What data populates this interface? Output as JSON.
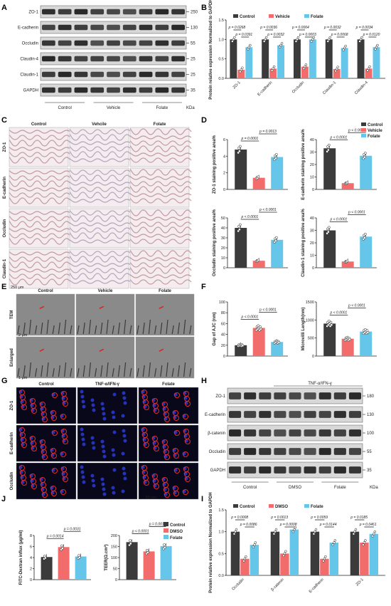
{
  "colors": {
    "control": "#3b3b3b",
    "vehicle": "#f26c6c",
    "folate": "#66c6ea"
  },
  "panels": {
    "A": "A",
    "B": "B",
    "C": "C",
    "D": "D",
    "E": "E",
    "F": "F",
    "G": "G",
    "H": "H",
    "I": "I",
    "J": "J"
  },
  "panelA": {
    "rows": [
      "ZO-1",
      "E-cadherin",
      "Occludin",
      "Claudin-4",
      "Claudin-1",
      "GAPDH"
    ],
    "markers": [
      "250",
      "130",
      "55",
      "25",
      "25",
      "35"
    ],
    "groups": [
      "Control",
      "Vehicle",
      "Folate"
    ],
    "unit": "KDa"
  },
  "panelB": {
    "ylabel": "Protein relative expression Normalized to GAPDH",
    "legend": [
      "Control",
      "Vehicle",
      "Folate"
    ],
    "categories": [
      "ZO-1",
      "E-cadherin",
      "Occludin",
      "Claudin-1",
      "Claudin-4"
    ],
    "yticks": [
      "0.0",
      "0.5",
      "1.0",
      "1.5"
    ],
    "pvals": [
      [
        "p = 0.0268",
        "p = 0.0391"
      ],
      [
        "p = 0.0036",
        "p = 0.0032"
      ],
      [
        "p = 0.0004",
        "p = 0.0003"
      ],
      [
        "p = 0.0032",
        "p = 0.0068"
      ],
      [
        "p = 0.0034",
        "p = 0.0120"
      ]
    ]
  },
  "panelC": {
    "cols": [
      "Control",
      "Vehcile",
      "Folate"
    ],
    "rows": [
      "ZO-1",
      "E-cadherin",
      "Occludin",
      "Claudin-1"
    ],
    "scale": "250 μm"
  },
  "panelD": {
    "legend": [
      "Control",
      "Vehicle",
      "Folate"
    ],
    "charts": [
      {
        "ylabel": "ZO-1 staining positive area%",
        "yticks": [
          "0",
          "2",
          "4",
          "6"
        ],
        "p1": "p = 0.0001",
        "p2": "p = 0.0013"
      },
      {
        "ylabel": "E-cadherin staining positive area%",
        "yticks": [
          "0",
          "10",
          "20",
          "30",
          "40"
        ],
        "p1": "p < 0.0001",
        "p2": "p < 0.0001"
      },
      {
        "ylabel": "Occludin staining positive area%",
        "yticks": [
          "0",
          "10",
          "20",
          "30",
          "40",
          "50"
        ],
        "p1": "p < 0.0001",
        "p2": "p < 0.0001"
      },
      {
        "ylabel": "Claudin-1 staining positive area%",
        "yticks": [
          "0",
          "10",
          "20",
          "30",
          "40"
        ],
        "p1": "p < 0.0001",
        "p2": "p < 0.0001"
      }
    ]
  },
  "panelE": {
    "cols": [
      "Control",
      "Vehicle",
      "Folate"
    ],
    "rows": [
      "TEM",
      "Enlarged"
    ],
    "scale1": "2 μm",
    "scale2": "1 μm"
  },
  "panelF": {
    "charts": [
      {
        "ylabel": "Gap of AJC (nm)",
        "yticks": [
          "0",
          "20",
          "40",
          "60",
          "80",
          "100"
        ],
        "p1": "p < 0.0001",
        "p2": "p < 0.0001"
      },
      {
        "ylabel": "Microvilli Length(nm)",
        "yticks": [
          "0",
          "500",
          "1000",
          "1500"
        ],
        "p1": "p < 0.0001",
        "p2": "p < 0.0001"
      }
    ]
  },
  "panelG": {
    "cols": [
      "Control",
      "TNF-α/IFN-γ",
      "Folate"
    ],
    "rows": [
      "ZO-1",
      "E-cadherin",
      "Occludin"
    ],
    "scale": "50 μm"
  },
  "panelH": {
    "treatment": "TNF-α/IFN-γ",
    "rows": [
      "ZO-1",
      "E-cadherin",
      "β-catenin",
      "Occludin",
      "GAPDH"
    ],
    "markers": [
      "180",
      "130",
      "100",
      "55",
      "35"
    ],
    "groups": [
      "Control",
      "DMSO",
      "Folate"
    ],
    "unit": "KDa"
  },
  "panelI": {
    "ylabel": "Protein relative expression Normalized to GAPDH",
    "legend": [
      "Control",
      "DMSO",
      "Folate"
    ],
    "categories": [
      "Occludin",
      "β-catenin",
      "E-cadherin",
      "ZO-1"
    ],
    "yticks": [
      "0.0",
      "0.5",
      "1.0",
      "1.5"
    ],
    "pvals": [
      [
        "p = 0.0008",
        "p = 0.0086"
      ],
      [
        "p = 0.0013",
        "p = 0.0008"
      ],
      [
        "p = 0.0059",
        "p = 0.0144"
      ],
      [
        "p = 0.0185",
        "p = 0.0461"
      ]
    ]
  },
  "panelJ": {
    "legend": [
      "Control",
      "DMSO",
      "Folate"
    ],
    "charts": [
      {
        "ylabel": "FITC-Dextran influx (μg/ml)",
        "yticks": [
          "0",
          "2",
          "4",
          "6",
          "8"
        ],
        "p1": "p = 0.0014",
        "p2": "p = 0.0031"
      },
      {
        "ylabel": "TEER(Ω.cm²)",
        "yticks": [
          "0",
          "50",
          "100",
          "150",
          "200"
        ],
        "p1": "p < 0.0001",
        "p2": "p = 0.0010"
      }
    ]
  },
  "chart_data": [
    {
      "type": "bar",
      "panel": "B",
      "categories": [
        "ZO-1",
        "E-cadherin",
        "Occludin",
        "Claudin-1",
        "Claudin-4"
      ],
      "series": [
        {
          "name": "Control",
          "values": [
            1.0,
            1.0,
            1.0,
            1.0,
            1.0
          ]
        },
        {
          "name": "Vehicle",
          "values": [
            0.22,
            0.25,
            0.3,
            0.24,
            0.25
          ]
        },
        {
          "name": "Folate",
          "values": [
            0.8,
            0.85,
            1.0,
            0.78,
            0.8
          ]
        }
      ],
      "ylim": [
        0,
        1.5
      ]
    },
    {
      "type": "bar",
      "panel": "D1",
      "categories": [
        "Control",
        "Vehicle",
        "Folate"
      ],
      "values": [
        4.8,
        1.4,
        3.9
      ],
      "ylim": [
        0,
        6
      ]
    },
    {
      "type": "bar",
      "panel": "D2",
      "categories": [
        "Control",
        "Vehicle",
        "Folate"
      ],
      "values": [
        33,
        5,
        27
      ],
      "ylim": [
        0,
        40
      ]
    },
    {
      "type": "bar",
      "panel": "D3",
      "categories": [
        "Control",
        "Vehicle",
        "Folate"
      ],
      "values": [
        40,
        7,
        28
      ],
      "ylim": [
        0,
        50
      ]
    },
    {
      "type": "bar",
      "panel": "D4",
      "categories": [
        "Control",
        "Vehicle",
        "Folate"
      ],
      "values": [
        30,
        5,
        25
      ],
      "ylim": [
        0,
        40
      ]
    },
    {
      "type": "bar",
      "panel": "F1",
      "categories": [
        "Control",
        "Vehicle",
        "Folate"
      ],
      "values": [
        20,
        52,
        26
      ],
      "ylim": [
        0,
        100
      ]
    },
    {
      "type": "bar",
      "panel": "F2",
      "categories": [
        "Control",
        "Vehicle",
        "Folate"
      ],
      "values": [
        900,
        480,
        680
      ],
      "ylim": [
        0,
        1500
      ]
    },
    {
      "type": "bar",
      "panel": "I",
      "categories": [
        "Occludin",
        "β-catenin",
        "E-cadherin",
        "ZO-1"
      ],
      "series": [
        {
          "name": "Control",
          "values": [
            1.0,
            1.0,
            1.0,
            1.0
          ]
        },
        {
          "name": "DMSO",
          "values": [
            0.38,
            0.5,
            0.38,
            0.75
          ]
        },
        {
          "name": "Folate",
          "values": [
            0.7,
            1.05,
            0.75,
            0.95
          ]
        }
      ],
      "ylim": [
        0,
        1.5
      ]
    },
    {
      "type": "bar",
      "panel": "J1",
      "categories": [
        "Control",
        "DMSO",
        "Folate"
      ],
      "values": [
        4.1,
        5.9,
        4.2
      ],
      "ylim": [
        0,
        8
      ]
    },
    {
      "type": "bar",
      "panel": "J2",
      "categories": [
        "Control",
        "DMSO",
        "Folate"
      ],
      "values": [
        170,
        128,
        152
      ],
      "ylim": [
        0,
        200
      ]
    }
  ]
}
